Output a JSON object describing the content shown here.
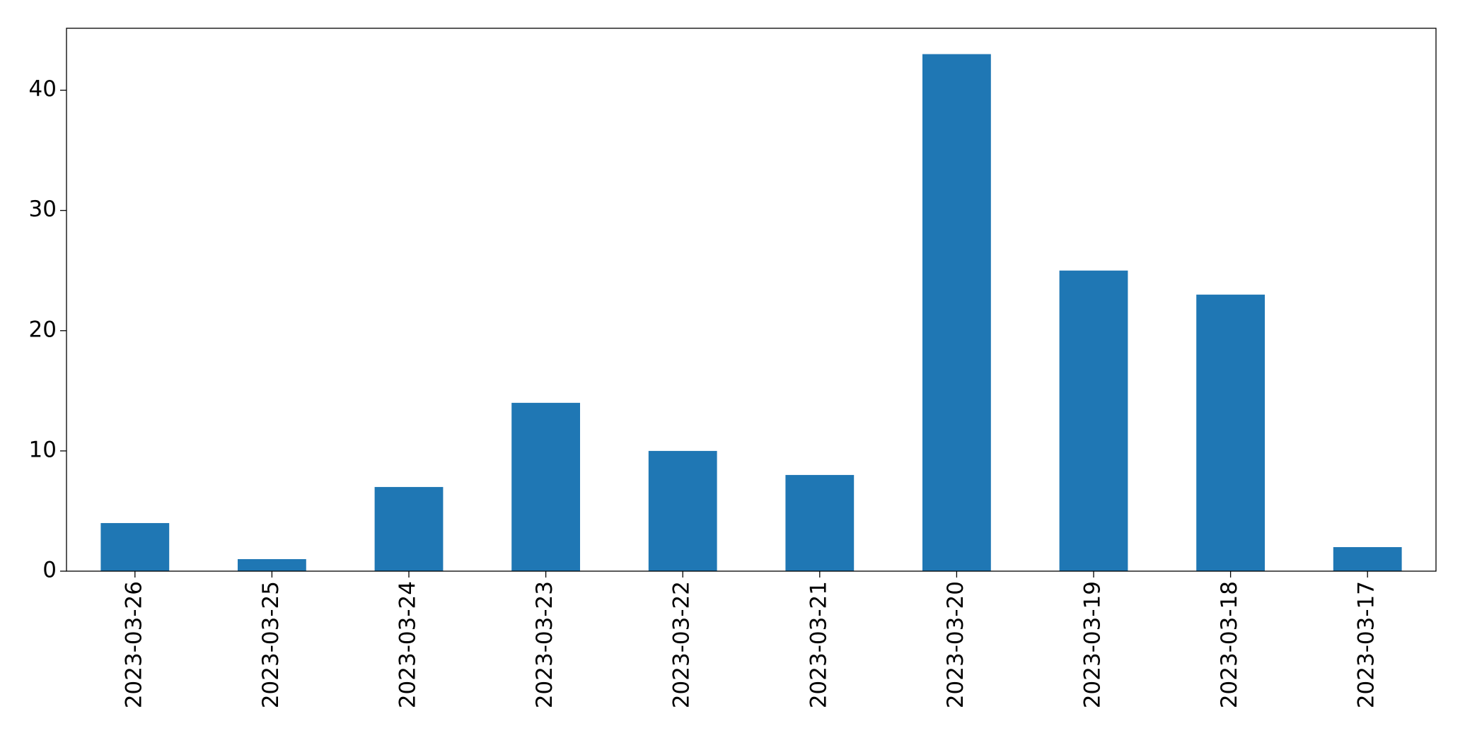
{
  "chart_data": {
    "type": "bar",
    "categories": [
      "2023-03-26",
      "2023-03-25",
      "2023-03-24",
      "2023-03-23",
      "2023-03-22",
      "2023-03-21",
      "2023-03-20",
      "2023-03-19",
      "2023-03-18",
      "2023-03-17"
    ],
    "values": [
      4,
      1,
      7,
      14,
      10,
      8,
      43,
      25,
      23,
      2
    ],
    "color": "#1f77b4",
    "ylim": [
      0,
      45.15
    ],
    "yticks": [
      0,
      10,
      20,
      30,
      40
    ],
    "grid": false
  }
}
